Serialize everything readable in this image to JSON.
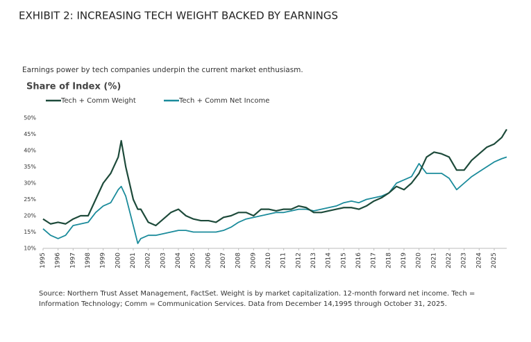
{
  "chart_data": {
    "type": "line",
    "title": "EXHIBIT 2: INCREASING TECH WEIGHT BACKED BY EARNINGS",
    "subtitle": "Earnings power by tech companies underpin the current market enthusiasm.",
    "y_label": "Share of Index (%)",
    "source": [
      "Source: Northern Trust Asset Management, FactSet. Weight is by market capitalization. 12-month forward net income. Tech =",
      "Information Technology; Comm = Communication Services. Data from December 14,1995 through October 31, 2025."
    ],
    "x": [
      1995,
      1995.5,
      1996,
      1996.5,
      1997,
      1997.5,
      1998,
      1998.5,
      1999,
      1999.5,
      2000,
      2000.2,
      2000.5,
      2001,
      2001.3,
      2001.5,
      2002,
      2002.5,
      2003,
      2003.5,
      2004,
      2004.5,
      2005,
      2005.5,
      2006,
      2006.5,
      2007,
      2007.5,
      2008,
      2008.5,
      2009,
      2009.5,
      2010,
      2010.5,
      2011,
      2011.5,
      2012,
      2012.5,
      2013,
      2013.5,
      2014,
      2014.5,
      2015,
      2015.5,
      2016,
      2016.5,
      2017,
      2017.5,
      2018,
      2018.5,
      2019,
      2019.5,
      2020,
      2020.5,
      2021,
      2021.5,
      2022,
      2022.5,
      2023,
      2023.5,
      2024,
      2024.5,
      2025,
      2025.5,
      2025.83
    ],
    "series": [
      {
        "name": "Tech + Comm Weight",
        "color": "#1d4a3a",
        "values": [
          19,
          17.5,
          18,
          17.5,
          19,
          20,
          20,
          25,
          30,
          33,
          38,
          43,
          35,
          25,
          22,
          22,
          18,
          17,
          19,
          21,
          22,
          20,
          19,
          18.5,
          18.5,
          18,
          19.5,
          20,
          21,
          21,
          20,
          22,
          22,
          21.5,
          22,
          22,
          23,
          22.5,
          21,
          21,
          21.5,
          22,
          22.5,
          22.5,
          22,
          23,
          24.5,
          25.5,
          27,
          29,
          28,
          30,
          33,
          38,
          39.5,
          39,
          38,
          34,
          34,
          37,
          39,
          41,
          42,
          44,
          46.5
        ]
      },
      {
        "name": "Tech + Comm Net Income",
        "color": "#1a8b9b",
        "values": [
          16,
          14,
          13,
          14,
          17,
          17.5,
          18,
          21,
          23,
          24,
          28,
          29,
          26,
          17,
          11.5,
          13,
          14,
          14,
          14.5,
          15,
          15.5,
          15.5,
          15,
          15,
          15,
          15,
          15.5,
          16.5,
          18,
          19,
          19.5,
          20,
          20.5,
          21,
          21,
          21.5,
          22,
          22,
          21.5,
          22,
          22.5,
          23,
          24,
          24.5,
          24,
          25,
          25.5,
          26,
          27,
          30,
          31,
          32,
          36,
          33,
          33,
          33,
          31.5,
          28,
          30,
          32,
          33.5,
          35,
          36.5,
          37.5,
          38
        ]
      }
    ],
    "xlim": [
      1995,
      2025.83
    ],
    "xticks": [
      1995,
      1996,
      1997,
      1998,
      1999,
      2000,
      2001,
      2002,
      2003,
      2004,
      2005,
      2006,
      2007,
      2008,
      2009,
      2010,
      2011,
      2012,
      2013,
      2014,
      2015,
      2016,
      2017,
      2018,
      2019,
      2020,
      2021,
      2022,
      2023,
      2024,
      2025
    ],
    "ylim": [
      10,
      50
    ],
    "yticks": [
      {
        "value": 10,
        "label": "10%"
      },
      {
        "value": 15,
        "label": "15%"
      },
      {
        "value": 20,
        "label": "20%"
      },
      {
        "value": 25,
        "label": "25%"
      },
      {
        "value": 30,
        "label": "30%"
      },
      {
        "value": 35,
        "label": "35%"
      },
      {
        "value": 40,
        "label": "40%"
      },
      {
        "value": 45,
        "label": "45%"
      },
      {
        "value": 50,
        "label": "50%"
      }
    ],
    "grid": false
  }
}
